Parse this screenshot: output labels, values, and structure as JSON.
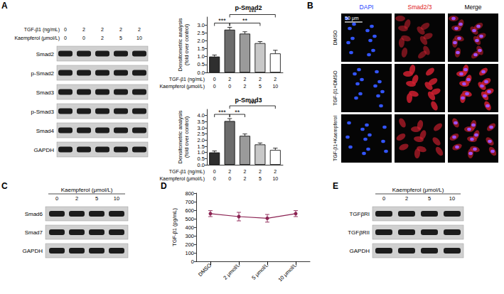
{
  "panel_labels": [
    "A",
    "B",
    "C",
    "D",
    "E"
  ],
  "blots": [
    {
      "panel": "A",
      "header_rows": [
        {
          "label": "TGF-β1 (ng/mL)",
          "values": [
            0,
            2,
            2,
            2,
            2
          ]
        },
        {
          "label": "Kaempferol (μmol/L)",
          "values": [
            0,
            0,
            2,
            5,
            10
          ]
        }
      ],
      "bands": [
        "Smad2",
        "p-Smad2",
        "Smad3",
        "p-Smad3",
        "Smad4",
        "GAPDH"
      ]
    },
    {
      "panel": "C",
      "header_title": "Kaempferol (μmol/L)",
      "lanes": [
        0,
        2,
        5,
        10
      ],
      "bands": [
        "Smad6",
        "Smad7",
        "GAPDH"
      ]
    },
    {
      "panel": "E",
      "header_title": "Kaempferol (μmol/L)",
      "lanes": [
        0,
        2,
        5,
        10
      ],
      "bands": [
        "TGFβRI",
        "TGFβRII",
        "GAPDH"
      ]
    }
  ],
  "immunofluorescence": {
    "panel": "B",
    "columns": [
      "DAPI",
      "Smad2/3",
      "Merge"
    ],
    "rows": [
      "DMSO",
      "TGF-β1+DMSO",
      "TGF-β1+Kaempferol"
    ],
    "scale_bar": "50 μm"
  },
  "chart_data": [
    {
      "type": "bar",
      "title": "p-Smad2",
      "ylabel": "Densitometric analysis\n(fold over control)",
      "x_label_rows": [
        {
          "label": "TGF-β1 (ng/mL)",
          "values": [
            0,
            2,
            2,
            2,
            2
          ]
        },
        {
          "label": "Kaempferol (μmol/L)",
          "values": [
            0,
            0,
            2,
            5,
            10
          ]
        }
      ],
      "values": [
        1.0,
        2.7,
        2.45,
        1.85,
        1.2
      ],
      "errors": [
        0.1,
        0.15,
        0.12,
        0.1,
        0.2
      ],
      "colors": [
        "#2f2f2f",
        "#6b6b6b",
        "#9a9a9a",
        "#c8c8c8",
        "#ffffff"
      ],
      "ylim": [
        0,
        3.5
      ],
      "yticks": [
        {
          "value": 0,
          "label": "0.0"
        },
        0.5,
        {
          "value": 1,
          "label": "1.0"
        },
        1.5,
        {
          "value": 2,
          "label": "2.0"
        },
        2.5,
        {
          "value": 3,
          "label": "3.0"
        }
      ],
      "tick_labels": "y",
      "annotations": [
        {
          "from": 0,
          "to": 1,
          "label": "***"
        },
        {
          "from": 1,
          "to": 3,
          "label": "**"
        },
        {
          "from": 1,
          "to": 4,
          "label": "***"
        }
      ]
    },
    {
      "type": "bar",
      "title": "p-Smad3",
      "ylabel": "Densitometric analysis\n(fold over control)",
      "x_label_rows": [
        {
          "label": "TGF-β1 (ng/mL)",
          "values": [
            0,
            2,
            2,
            2,
            2
          ]
        },
        {
          "label": "Kaempferol (μmol/L)",
          "values": [
            0,
            0,
            2,
            5,
            10
          ]
        }
      ],
      "values": [
        1.0,
        3.55,
        2.35,
        1.65,
        1.2
      ],
      "errors": [
        0.12,
        0.2,
        0.15,
        0.12,
        0.15
      ],
      "colors": [
        "#2f2f2f",
        "#6b6b6b",
        "#9a9a9a",
        "#c8c8c8",
        "#ffffff"
      ],
      "ylim": [
        0,
        4.5
      ],
      "yticks": [
        {
          "value": 0,
          "label": "0.0"
        },
        0.5,
        {
          "value": 1,
          "label": "1.0"
        },
        1.5,
        {
          "value": 2,
          "label": "2.0"
        },
        2.5,
        {
          "value": 3,
          "label": "3.0"
        },
        3.5,
        {
          "value": 4,
          "label": "4.0"
        }
      ],
      "tick_labels": "y",
      "annotations": [
        {
          "from": 0,
          "to": 1,
          "label": "***"
        },
        {
          "from": 1,
          "to": 2,
          "label": "**"
        },
        {
          "from": 1,
          "to": 4,
          "label": "***"
        }
      ]
    },
    {
      "type": "line",
      "ylabel": "TGF-β1 (pg/mL)",
      "categories": [
        "DMSO",
        "2 μmol/L",
        "5 μmol/L",
        "10 μmol/L"
      ],
      "values": [
        560,
        525,
        505,
        560
      ],
      "errors": [
        35,
        50,
        45,
        35
      ],
      "color": "#8b2252",
      "marker": "circle",
      "ylim": [
        0,
        800
      ],
      "yticks": [
        0,
        100,
        200,
        300,
        400,
        500,
        600,
        700,
        800
      ]
    }
  ]
}
